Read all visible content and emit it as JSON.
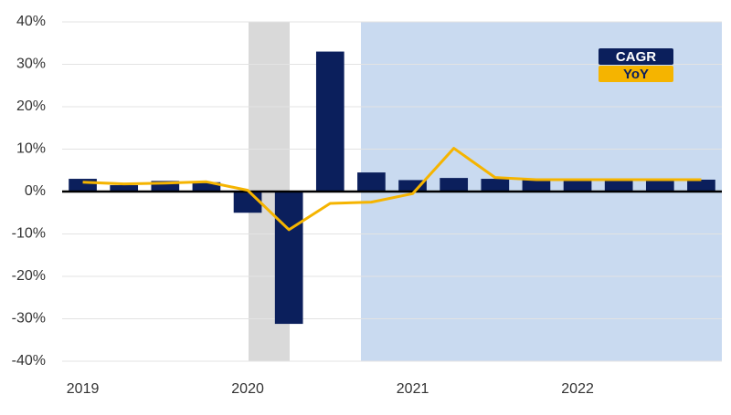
{
  "chart_data": {
    "type": "bar",
    "categories": [
      "2019",
      null,
      null,
      null,
      "2020",
      null,
      null,
      null,
      "2021",
      null,
      null,
      null,
      "2022",
      null,
      null,
      null
    ],
    "series": [
      {
        "name": "CAGR",
        "type": "bar",
        "color": "#0b1f5c",
        "values": [
          3.0,
          1.5,
          2.5,
          2.2,
          -5.0,
          -31.2,
          33.0,
          4.5,
          2.7,
          3.2,
          3.0,
          2.8,
          2.8,
          2.8,
          2.8,
          2.8
        ]
      },
      {
        "name": "YoY",
        "type": "line",
        "color": "#f5b400",
        "values": [
          2.2,
          1.8,
          2.0,
          2.3,
          0.3,
          -9.0,
          -2.8,
          -2.5,
          -0.5,
          10.2,
          3.3,
          2.8,
          2.8,
          2.8,
          2.8,
          2.8
        ]
      }
    ],
    "ylim": [
      -40,
      40
    ],
    "yticks": [
      {
        "value": -40,
        "label": "-40%"
      },
      {
        "value": -30,
        "label": "-30%"
      },
      {
        "value": -20,
        "label": "-20%"
      },
      {
        "value": -10,
        "label": "-10%"
      },
      {
        "value": 0,
        "label": "0%"
      },
      {
        "value": 10,
        "label": "10%"
      },
      {
        "value": 20,
        "label": "20%"
      },
      {
        "value": 30,
        "label": "30%"
      },
      {
        "value": 40,
        "label": "40%"
      }
    ],
    "grid": true,
    "legend": "top-right"
  }
}
